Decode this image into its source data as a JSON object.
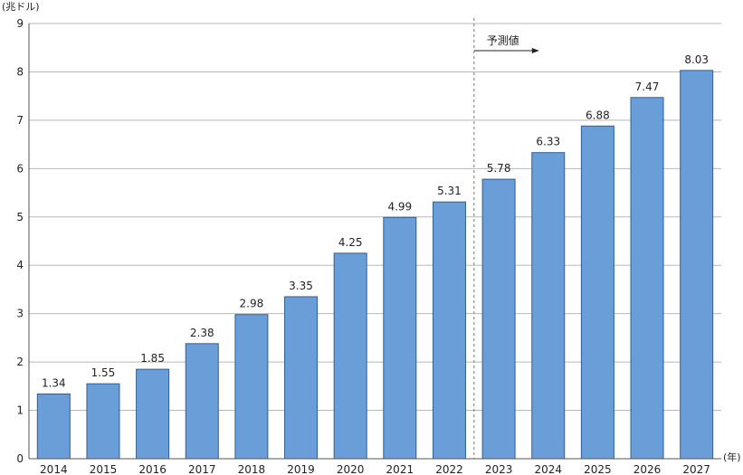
{
  "chart_data": {
    "type": "bar",
    "ylabel": "(兆ドル)",
    "xunit": "(年)",
    "categories": [
      "2014",
      "2015",
      "2016",
      "2017",
      "2018",
      "2019",
      "2020",
      "2021",
      "2022",
      "2023",
      "2024",
      "2025",
      "2026",
      "2027"
    ],
    "values": [
      1.34,
      1.55,
      1.85,
      2.38,
      2.98,
      3.35,
      4.25,
      4.99,
      5.31,
      5.78,
      6.33,
      6.88,
      7.47,
      8.03
    ],
    "data_labels": [
      "1.34",
      "1.55",
      "1.85",
      "2.38",
      "2.98",
      "3.35",
      "4.25",
      "4.99",
      "5.31",
      "5.78",
      "6.33",
      "6.88",
      "7.47",
      "8.03"
    ],
    "ylim": [
      0,
      9
    ],
    "yticks": [
      "0",
      "1",
      "2",
      "3",
      "4",
      "5",
      "6",
      "7",
      "8",
      "9"
    ],
    "grid": true,
    "bar_color": "#6a9ed9",
    "bar_edge_color": "#2e5f96",
    "annotation": {
      "text": "予測値",
      "starts_before_category": "2023"
    }
  }
}
